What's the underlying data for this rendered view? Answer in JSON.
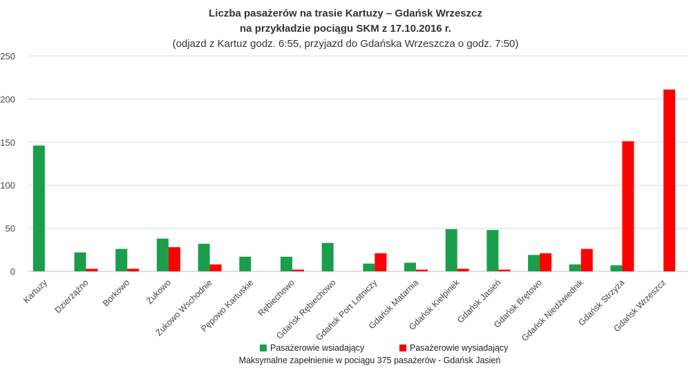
{
  "chart_data": {
    "type": "bar",
    "title": "Liczba pasażerów na trasie Kartuzy – Gdańsk Wrzeszcz",
    "subtitle": "na przykładzie pociągu SKM z 17.10.2016 r.",
    "subtitle2": "(odjazd z Kartuz godz. 6:55, przyjazd do Gdańska Wrzeszcza o godz. 7:50)",
    "footer": "Maksymalne zapełnienie w pociągu 375 pasażerów - Gdańsk Jasień",
    "ylim": [
      0,
      250
    ],
    "yticks": [
      0,
      50,
      100,
      150,
      200,
      250
    ],
    "grid": true,
    "legend_position": "bottom",
    "categories": [
      "Kartuzy",
      "Dzierżążno",
      "Borkowo",
      "Żukowo",
      "Żukowo Wschodnie",
      "Pępowo Kartuskie",
      "Rębiechowo",
      "Gdańsk Rębiechowo",
      "Gdańsk Port Lotniczy",
      "Gdańsk Matarnia",
      "Gdańsk Kiełpinek",
      "Gdańsk Jasień",
      "Gdańsk Brętowo",
      "Gdańsk Niedźwiednik",
      "Gdańsk Strzyża",
      "Gdańsk Wrzeszcz"
    ],
    "series": [
      {
        "name": "Pasażerowie wsiadający",
        "color": "#1a9e4b",
        "values": [
          146,
          22,
          26,
          38,
          32,
          17,
          17,
          33,
          9,
          10,
          49,
          48,
          19,
          8,
          7,
          0
        ]
      },
      {
        "name": "Pasażerowie wysiadający",
        "color": "#ff0000",
        "values": [
          0,
          3,
          3,
          28,
          8,
          0,
          2,
          0,
          21,
          2,
          3,
          2,
          21,
          26,
          151,
          211
        ]
      }
    ]
  }
}
